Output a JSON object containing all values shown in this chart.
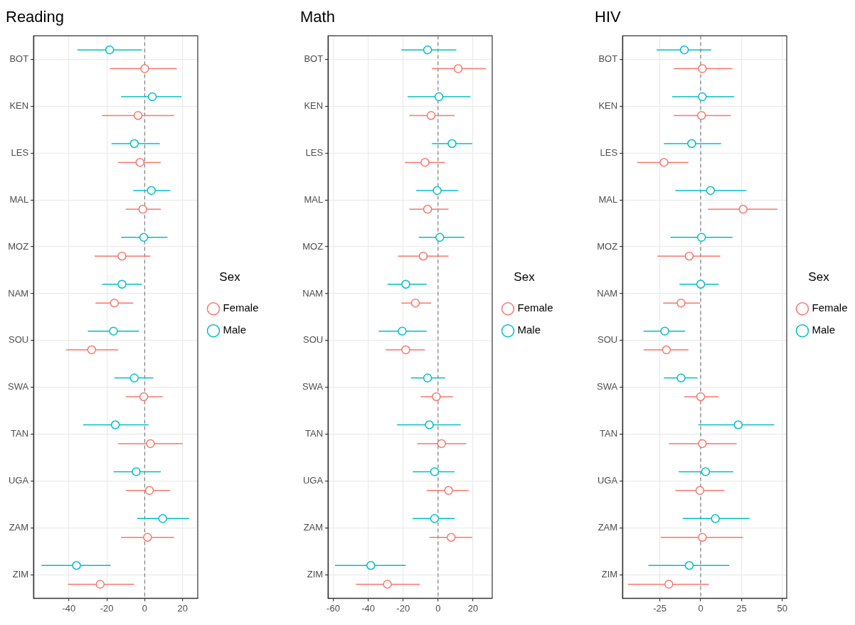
{
  "chart_data": [
    {
      "type": "scatter",
      "title": "Reading",
      "orientation": "horizontal",
      "legend_title": "Sex",
      "legend": "right",
      "grid": true,
      "marker": "circle",
      "categories": [
        "BOT",
        "KEN",
        "LES",
        "MAL",
        "MOZ",
        "NAM",
        "SOU",
        "SWA",
        "TAN",
        "UGA",
        "ZAM",
        "ZIM"
      ],
      "xlim": [
        -58.7,
        28
      ],
      "xticks": [
        -40,
        -20,
        0,
        20
      ],
      "ref_lines": [
        {
          "axis": "x",
          "value": 0,
          "color": "#7f7f7f",
          "line_style": "dashed"
        }
      ],
      "series": [
        {
          "name": "Female",
          "color": "#f8766d",
          "values": [
            0,
            -3.5,
            -2.5,
            -1,
            -12,
            -16,
            -28,
            -0.5,
            3,
            2.5,
            1.5,
            -23.5
          ],
          "errors": [
            [
              -18.5,
              17
            ],
            [
              -22.5,
              15.5
            ],
            [
              -14,
              8.5
            ],
            [
              -10,
              8.5
            ],
            [
              -26.5,
              3
            ],
            [
              -26,
              -6
            ],
            [
              -41.5,
              -14
            ],
            [
              -10,
              9.5
            ],
            [
              -14,
              20
            ],
            [
              -10,
              13.5
            ],
            [
              -12.5,
              15.5
            ],
            [
              -40.5,
              -5.5
            ]
          ]
        },
        {
          "name": "Male",
          "color": "#00bfc4",
          "values": [
            -18.5,
            4,
            -5.5,
            3.5,
            -0.5,
            -12,
            -16.5,
            -5.5,
            -15.5,
            -4.5,
            9.5,
            -36
          ],
          "errors": [
            [
              -35.5,
              -1.5
            ],
            [
              -12.5,
              19.5
            ],
            [
              -17.5,
              8
            ],
            [
              -6,
              13.5
            ],
            [
              -12.5,
              12
            ],
            [
              -22.5,
              -1.5
            ],
            [
              -30,
              -3
            ],
            [
              -16,
              4.5
            ],
            [
              -32.5,
              2
            ],
            [
              -16.5,
              8.5
            ],
            [
              -4,
              23.5
            ],
            [
              -54.5,
              -18
            ]
          ]
        }
      ]
    },
    {
      "type": "scatter",
      "title": "Math",
      "orientation": "horizontal",
      "legend_title": "Sex",
      "legend": "right",
      "grid": true,
      "marker": "circle",
      "categories": [
        "BOT",
        "KEN",
        "LES",
        "MAL",
        "MOZ",
        "NAM",
        "SOU",
        "SWA",
        "TAN",
        "UGA",
        "ZAM",
        "ZIM"
      ],
      "xlim": [
        -63,
        31
      ],
      "xticks": [
        -60,
        -40,
        -20,
        0,
        20
      ],
      "ref_lines": [
        {
          "axis": "x",
          "value": 0,
          "color": "#7f7f7f",
          "line_style": "dashed"
        }
      ],
      "series": [
        {
          "name": "Female",
          "color": "#f8766d",
          "values": [
            11.5,
            -4,
            -7.5,
            -6,
            -8.5,
            -13,
            -18.5,
            -1,
            2,
            6,
            7.5,
            -29
          ],
          "errors": [
            [
              -3.5,
              27.5
            ],
            [
              -16.5,
              9.5
            ],
            [
              -19,
              4
            ],
            [
              -16.5,
              6
            ],
            [
              -23,
              6
            ],
            [
              -21,
              -4
            ],
            [
              -30,
              -7.5
            ],
            [
              -10,
              8.5
            ],
            [
              -12,
              16
            ],
            [
              -6.5,
              17.5
            ],
            [
              -5,
              19.5
            ],
            [
              -47,
              -10.5
            ]
          ]
        },
        {
          "name": "Male",
          "color": "#00bfc4",
          "values": [
            -6,
            0.5,
            8,
            -0.5,
            1,
            -18.5,
            -20.5,
            -6,
            -5,
            -2,
            -2,
            -38.5
          ],
          "errors": [
            [
              -21,
              10.5
            ],
            [
              -17.5,
              18.5
            ],
            [
              -3.5,
              19.5
            ],
            [
              -12.5,
              11.5
            ],
            [
              -11,
              15
            ],
            [
              -29,
              -6.5
            ],
            [
              -34,
              -6.5
            ],
            [
              -15.5,
              4
            ],
            [
              -23.5,
              13
            ],
            [
              -14.5,
              9.5
            ],
            [
              -14.5,
              9.5
            ],
            [
              -59,
              -18.5
            ]
          ]
        }
      ]
    },
    {
      "type": "scatter",
      "title": "HIV",
      "orientation": "horizontal",
      "legend_title": "Sex",
      "legend": "right",
      "grid": true,
      "marker": "circle",
      "categories": [
        "BOT",
        "KEN",
        "LES",
        "MAL",
        "MOZ",
        "NAM",
        "SOU",
        "SWA",
        "TAN",
        "UGA",
        "ZAM",
        "ZIM"
      ],
      "xlim": [
        -47.9,
        52.7
      ],
      "xticks": [
        -25,
        0,
        25,
        50
      ],
      "ref_lines": [
        {
          "axis": "x",
          "value": 0,
          "color": "#7f7f7f",
          "line_style": "dashed"
        }
      ],
      "series": [
        {
          "name": "Female",
          "color": "#f8766d",
          "values": [
            1,
            0.5,
            -22.5,
            26,
            -7,
            -12,
            -21,
            0,
            1,
            -0.5,
            1,
            -19.5
          ],
          "errors": [
            [
              -16.5,
              19.5
            ],
            [
              -16.5,
              18.5
            ],
            [
              -39,
              -7.5
            ],
            [
              4.5,
              47
            ],
            [
              -26.5,
              12
            ],
            [
              -23,
              -0.5
            ],
            [
              -35,
              -7.5
            ],
            [
              -10,
              11
            ],
            [
              -19.5,
              22
            ],
            [
              -15.5,
              14.5
            ],
            [
              -24.5,
              26
            ],
            [
              -44.5,
              5
            ]
          ]
        },
        {
          "name": "Male",
          "color": "#00bfc4",
          "values": [
            -10,
            1,
            -5.5,
            6,
            0.5,
            0,
            -22,
            -12,
            23,
            3,
            9,
            -7
          ],
          "errors": [
            [
              -27,
              6.5
            ],
            [
              -17.5,
              20.5
            ],
            [
              -22.5,
              12.5
            ],
            [
              -15.5,
              28
            ],
            [
              -18.5,
              19.5
            ],
            [
              -13,
              11
            ],
            [
              -35,
              -9.5
            ],
            [
              -22.5,
              -2
            ],
            [
              -1.5,
              45
            ],
            [
              -13.5,
              20
            ],
            [
              -11,
              30
            ],
            [
              -32,
              17.5
            ]
          ]
        }
      ]
    }
  ]
}
